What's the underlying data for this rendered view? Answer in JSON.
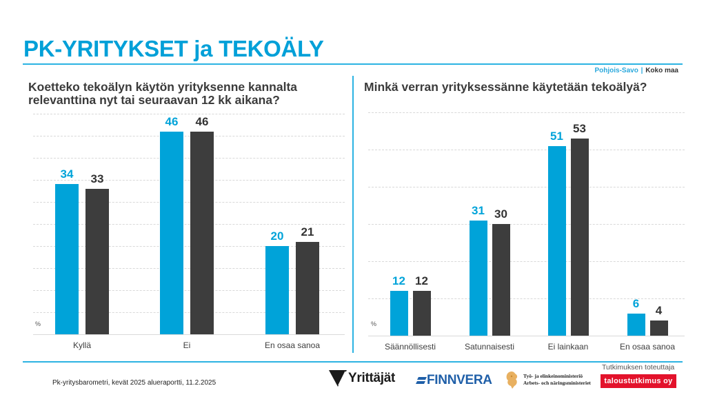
{
  "header": {
    "title": "PK-YRITYKSET ja TEKOÄLY",
    "legend": {
      "region": "Pohjois-Savo",
      "separator": "|",
      "national": "Koko maa"
    }
  },
  "colors": {
    "accent": "#00a3d9",
    "region_bar": "#00a3d9",
    "national_bar": "#3d3d3d",
    "producer_red": "#e3122b"
  },
  "left_chart": {
    "question": "Koetteko tekoälyn käytön yrityksenne kannalta relevanttina nyt tai seuraavan 12 kk aikana?",
    "unit_label": "%"
  },
  "right_chart": {
    "question": "Minkä verran yrityksessänne käytetään tekoälyä?",
    "unit_label": "%"
  },
  "chart_data": [
    {
      "type": "bar",
      "title": "Koetteko tekoälyn käytön yrityksenne kannalta relevanttina nyt tai seuraavan 12 kk aikana?",
      "categories": [
        "Kyllä",
        "Ei",
        "En osaa sanoa"
      ],
      "series": [
        {
          "name": "Pohjois-Savo",
          "values": [
            34,
            46,
            20
          ]
        },
        {
          "name": "Koko maa",
          "values": [
            33,
            46,
            21
          ]
        }
      ],
      "xlabel": "",
      "ylabel": "%",
      "ylim": [
        0,
        50
      ],
      "grid": true,
      "legend_position": "top-right"
    },
    {
      "type": "bar",
      "title": "Minkä verran yrityksessänne käytetään tekoälyä?",
      "categories": [
        "Säännöllisesti",
        "Satunnaisesti",
        "Ei lainkaan",
        "En osaa sanoa"
      ],
      "series": [
        {
          "name": "Pohjois-Savo",
          "values": [
            12,
            31,
            51,
            6
          ]
        },
        {
          "name": "Koko maa",
          "values": [
            12,
            30,
            53,
            4
          ]
        }
      ],
      "xlabel": "",
      "ylabel": "%",
      "ylim": [
        0,
        60
      ],
      "grid": true,
      "legend_position": "top-right"
    }
  ],
  "footer": {
    "source": "Pk-yritysbarometri, kevät 2025 alueraportti, 11.2.2025",
    "logos": {
      "yrittajat": "Yrittäjät",
      "finnvera": "FINNVERA",
      "tem_line1": "Työ- ja elinkeinoministeriö",
      "tem_line2": "Arbets- och näringsministeriet"
    },
    "producer_label": "Tutkimuksen toteuttaja",
    "producer_name": "taloustutkimus oy"
  }
}
